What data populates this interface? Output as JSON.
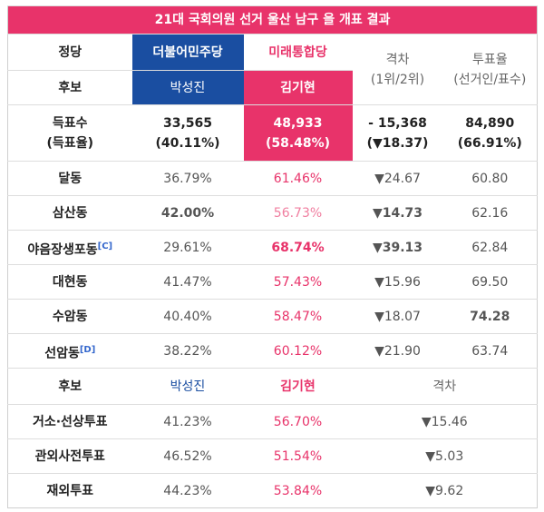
{
  "table": {
    "title": "21대 국회의원 선거 울산 남구 을 개표 결과",
    "header_rows": [
      [
        "정당",
        "더불어민주당",
        "미래통합당"
      ],
      [
        "후보",
        "박성진",
        "김기현"
      ]
    ],
    "gap_header": [
      "격차",
      "(1위/2위)"
    ],
    "turnout_header": [
      "투표율",
      "(선거인/표수)"
    ],
    "total_row": [
      [
        "득표수",
        "(득표율)"
      ],
      [
        "33,565",
        "(40.11%)"
      ],
      [
        "48,933",
        "(58.48%)"
      ],
      [
        "- 15,368",
        "(▼18.37)"
      ],
      [
        "84,890",
        "(66.91%)"
      ]
    ],
    "district_rows": [
      {
        "name": "달동",
        "cells": [
          "36.79%",
          "61.46%",
          "▼24.67",
          "60.80"
        ]
      },
      {
        "name": "삼산동",
        "cells": [
          "42.00%",
          "56.73%",
          "▼14.73",
          "62.16"
        ]
      },
      {
        "name": "야음장생포동",
        "note": "[C]",
        "cells": [
          "29.61%",
          "68.74%",
          "▼39.13",
          "62.84"
        ]
      },
      {
        "name": "대현동",
        "cells": [
          "41.47%",
          "57.43%",
          "▼15.96",
          "69.50"
        ]
      },
      {
        "name": "수암동",
        "cells": [
          "40.40%",
          "58.47%",
          "▼18.07",
          "74.28"
        ]
      },
      {
        "name": "선암동",
        "note": "[D]",
        "cells": [
          "38.22%",
          "60.12%",
          "▼21.90",
          "63.74"
        ]
      }
    ],
    "special_header": [
      "후보",
      "박성진",
      "김기현",
      "격차"
    ],
    "special_rows": [
      [
        "거소·선상투표",
        "41.23%",
        "56.70%",
        "▼15.46"
      ],
      [
        "관외사전투표",
        "46.52%",
        "51.54%",
        "▼5.03"
      ],
      [
        "재외투표",
        "44.23%",
        "53.84%",
        "▼9.62"
      ]
    ]
  }
}
